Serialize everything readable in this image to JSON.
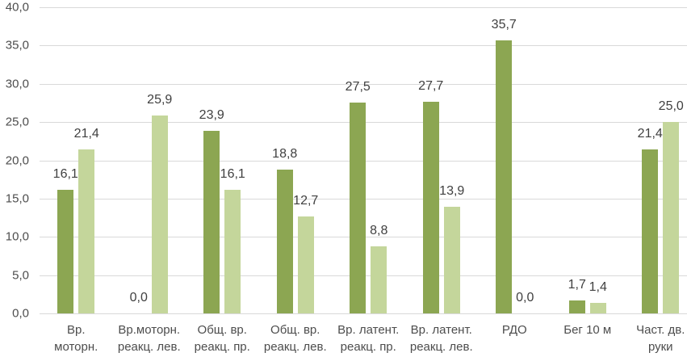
{
  "chart_data": {
    "type": "bar",
    "title": "",
    "categories": [
      "Вр.\nмоторн.",
      "Вр.моторн.\nреакц. лев.",
      "Общ. вр.\nреакц. пр.",
      "Общ. вр.\nреакц. лев.",
      "Вр. латент.\nреакц. пр.",
      "Вр. латент.\nреакц. лев.",
      "РДО",
      "Бег 10 м",
      "Част. дв.\nруки"
    ],
    "series": [
      {
        "name": "dark-green",
        "color": "#8CA652",
        "values": [
          16.1,
          0.0,
          23.9,
          18.8,
          27.5,
          27.7,
          35.7,
          1.7,
          21.4
        ]
      },
      {
        "name": "light-green",
        "color": "#C4D69B",
        "values": [
          21.4,
          25.9,
          16.1,
          12.7,
          8.8,
          13.9,
          0.0,
          1.4,
          25.0
        ]
      }
    ],
    "ylim": [
      0,
      40
    ],
    "ytick_step": 5,
    "y_tick_labels": [
      "0,0",
      "5,0",
      "10,0",
      "15,0",
      "20,0",
      "25,0",
      "30,0",
      "35,0",
      "40,0"
    ],
    "decimal_separator": ",",
    "value_labels": true,
    "grid": true,
    "legend": "none"
  },
  "colors": {
    "gridline": "#D9D9D9",
    "axis_text": "#4D4D4D",
    "value_text": "#404040",
    "background": "#FFFFFF"
  }
}
